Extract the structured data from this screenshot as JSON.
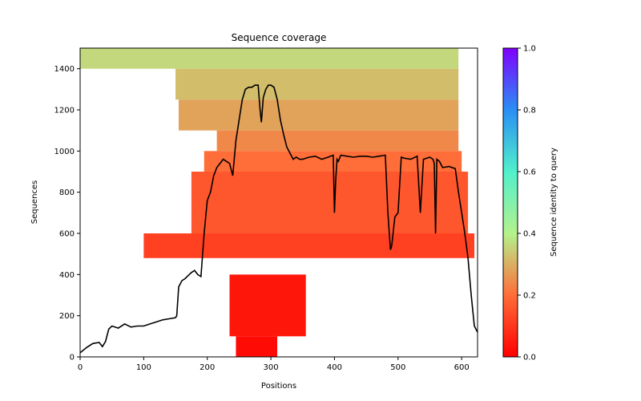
{
  "chart_data": {
    "type": "heatmap",
    "title": "Sequence coverage",
    "xlabel": "Positions",
    "ylabel": "Sequences",
    "xlim": [
      0,
      625
    ],
    "ylim": [
      0,
      1500
    ],
    "xticks": [
      0,
      100,
      200,
      300,
      400,
      500,
      600
    ],
    "yticks": [
      0,
      200,
      400,
      600,
      800,
      1000,
      1200,
      1400
    ],
    "colorbar": {
      "label": "Sequence identity to query",
      "range": [
        0,
        1
      ],
      "ticks": [
        0.0,
        0.2,
        0.4,
        0.6,
        0.8,
        1.0
      ],
      "tick_labels": [
        "0.0",
        "0.2",
        "0.4",
        "0.6",
        "0.8",
        "1.0"
      ],
      "colormap": "rainbow_r"
    },
    "coverage_blocks": [
      {
        "seq_range": [
          0,
          100
        ],
        "pos_range": [
          245,
          310
        ],
        "identity": 0.02
      },
      {
        "seq_range": [
          100,
          400
        ],
        "pos_range": [
          235,
          355
        ],
        "identity": 0.04
      },
      {
        "seq_range": [
          480,
          600
        ],
        "pos_range": [
          100,
          620
        ],
        "identity": 0.12
      },
      {
        "seq_range": [
          600,
          900
        ],
        "pos_range": [
          175,
          610
        ],
        "identity": 0.16
      },
      {
        "seq_range": [
          900,
          1000
        ],
        "pos_range": [
          195,
          600
        ],
        "identity": 0.2
      },
      {
        "seq_range": [
          1000,
          1100
        ],
        "pos_range": [
          215,
          595
        ],
        "identity": 0.24
      },
      {
        "seq_range": [
          1100,
          1250
        ],
        "pos_range": [
          155,
          595
        ],
        "identity": 0.28
      },
      {
        "seq_range": [
          1250,
          1400
        ],
        "pos_range": [
          150,
          595
        ],
        "identity": 0.32
      },
      {
        "seq_range": [
          1400,
          1500
        ],
        "pos_range": [
          0,
          595
        ],
        "identity": 0.36
      }
    ],
    "coverage_line": {
      "x": [
        0,
        10,
        20,
        30,
        35,
        40,
        45,
        50,
        60,
        70,
        80,
        90,
        100,
        110,
        120,
        130,
        140,
        150,
        152,
        155,
        160,
        165,
        170,
        175,
        180,
        185,
        190,
        195,
        200,
        205,
        210,
        215,
        220,
        225,
        230,
        235,
        240,
        245,
        250,
        255,
        260,
        265,
        270,
        275,
        280,
        283,
        285,
        288,
        292,
        296,
        300,
        305,
        310,
        315,
        320,
        325,
        330,
        335,
        340,
        345,
        350,
        355,
        360,
        370,
        380,
        390,
        398,
        400,
        402,
        404,
        406,
        410,
        420,
        430,
        440,
        450,
        460,
        470,
        480,
        484,
        488,
        490,
        495,
        500,
        505,
        510,
        520,
        530,
        535,
        540,
        550,
        555,
        557,
        559,
        561,
        565,
        570,
        580,
        590,
        595,
        600,
        605,
        610,
        615,
        620,
        625
      ],
      "y": [
        20,
        45,
        65,
        70,
        50,
        75,
        135,
        150,
        140,
        160,
        145,
        150,
        150,
        160,
        170,
        180,
        185,
        190,
        200,
        340,
        370,
        380,
        395,
        410,
        420,
        400,
        390,
        600,
        760,
        800,
        880,
        920,
        940,
        960,
        950,
        940,
        880,
        1050,
        1150,
        1250,
        1300,
        1310,
        1310,
        1320,
        1320,
        1200,
        1140,
        1260,
        1300,
        1320,
        1320,
        1310,
        1250,
        1150,
        1080,
        1020,
        990,
        960,
        970,
        960,
        960,
        965,
        970,
        975,
        960,
        970,
        980,
        700,
        860,
        960,
        950,
        980,
        975,
        970,
        975,
        975,
        970,
        975,
        980,
        700,
        520,
        540,
        680,
        700,
        970,
        965,
        960,
        975,
        700,
        960,
        970,
        960,
        940,
        600,
        960,
        950,
        920,
        925,
        915,
        800,
        700,
        600,
        480,
        300,
        150,
        120
      ]
    }
  }
}
